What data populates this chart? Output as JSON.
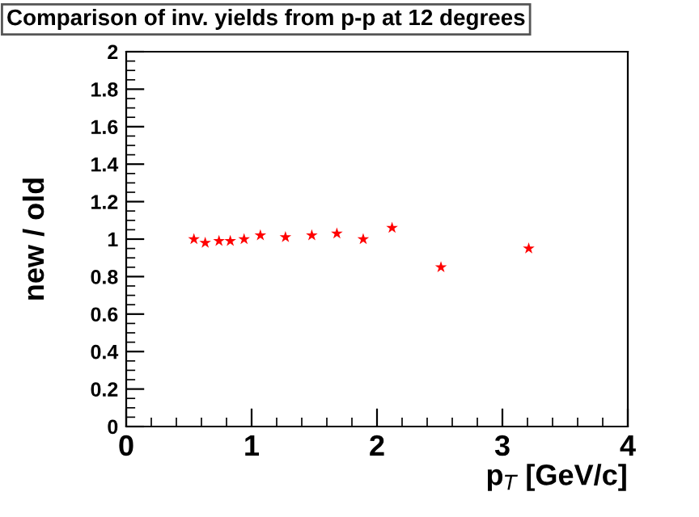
{
  "chart_data": {
    "type": "scatter",
    "title": "Comparison of inv. yields from p-p at 12 degrees",
    "xlabel": "p$_{T}$ [GeV/c]",
    "ylabel": "new / old",
    "x": [
      0.54,
      0.63,
      0.74,
      0.83,
      0.94,
      1.07,
      1.27,
      1.48,
      1.68,
      1.89,
      2.12,
      2.51,
      3.21
    ],
    "series": [
      {
        "color": "#ff0000",
        "values": [
          1.0,
          0.98,
          0.99,
          0.99,
          1.0,
          1.02,
          1.01,
          1.02,
          1.03,
          1.0,
          1.06,
          0.85,
          0.95
        ]
      }
    ],
    "xlim": [
      0,
      4
    ],
    "ylim": [
      0,
      2
    ],
    "xticks": [
      0,
      1,
      2,
      3,
      4
    ],
    "yticks": [
      0,
      0.2,
      0.4,
      0.6,
      0.8,
      1,
      1.2,
      1.4,
      1.6,
      1.8,
      2
    ],
    "marker": "star",
    "grid": false,
    "legend": false
  }
}
